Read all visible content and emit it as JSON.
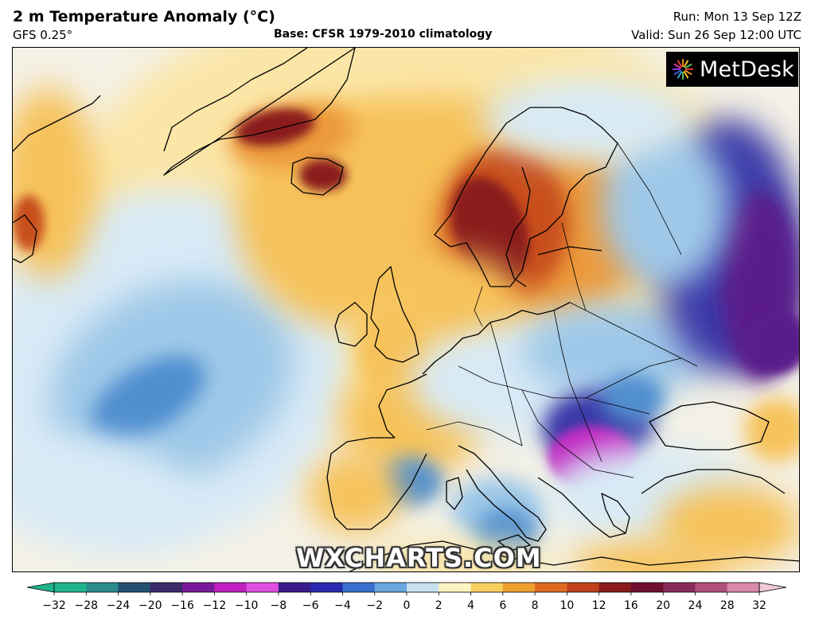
{
  "header": {
    "title": "2 m Temperature Anomaly (°C)",
    "model": "GFS 0.25°",
    "base": "Base: CFSR 1979-2010 climatology",
    "run": "Run: Mon 13 Sep 12Z",
    "valid": "Valid: Sun 26 Sep 12:00 UTC"
  },
  "logo": {
    "text": "MetDesk",
    "icon": "starburst-icon"
  },
  "watermark": "WXCHARTS.COM",
  "colorbar": {
    "ticks": [
      "−32",
      "−28",
      "−24",
      "−20",
      "−16",
      "−12",
      "−10",
      "−8",
      "−6",
      "−4",
      "−2",
      "0",
      "2",
      "4",
      "6",
      "8",
      "10",
      "12",
      "16",
      "20",
      "24",
      "28",
      "32"
    ],
    "colors": [
      "#1fb48c",
      "#2a8c8c",
      "#245070",
      "#3a2a6a",
      "#7a1a9a",
      "#c020c0",
      "#e050e0",
      "#3a1a8a",
      "#2a2ab0",
      "#3a70d0",
      "#6aa8e0",
      "#c8e0f0",
      "#fff4c0",
      "#f8d060",
      "#f0a030",
      "#e06a20",
      "#c0401a",
      "#8a1a1a",
      "#701030",
      "#8a2a5a",
      "#b0507a",
      "#d88aa8",
      "#f0c8d8"
    ]
  },
  "map_colors": {
    "warm_light": "#fbe6a8",
    "warm": "#f6c25a",
    "orange": "#ec9a3a",
    "red": "#c8501e",
    "dark_red": "#8a1a1a",
    "cool_light": "#d8eaf6",
    "cool": "#9fc8e8",
    "blue": "#4f8fd0",
    "deep_blue": "#3a3aa8",
    "purple": "#5a1a8a",
    "magenta": "#c020c0",
    "neutral": "#f4f1e6",
    "coast": "#000000"
  }
}
